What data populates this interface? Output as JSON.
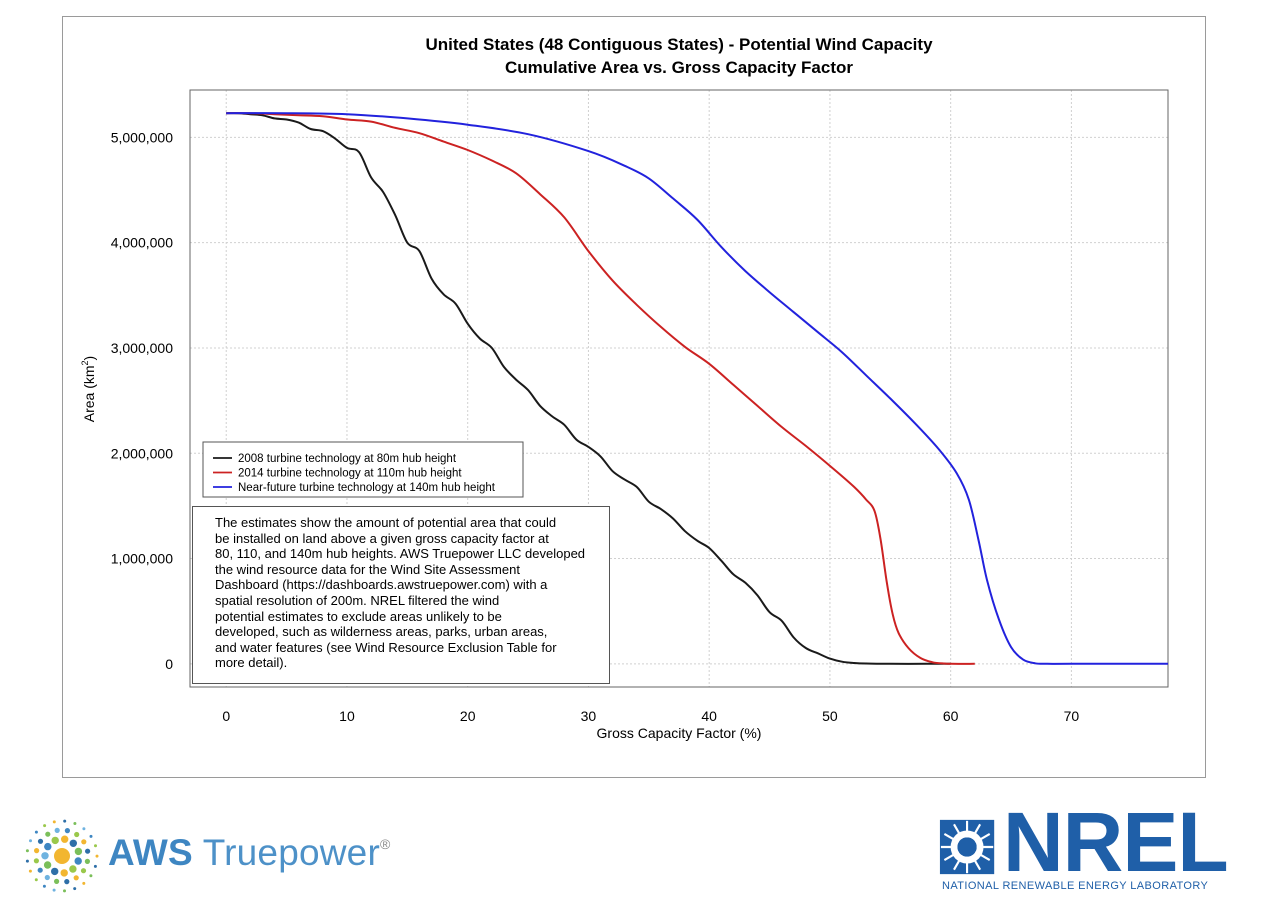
{
  "chart_data": {
    "type": "line",
    "title": "United States (48 Contiguous States) - Potential Wind Capacity",
    "subtitle": "Cumulative Area vs. Gross Capacity Factor",
    "xlabel": "Gross Capacity Factor (%)",
    "ylabel_main": "Area (km",
    "ylabel_sup": "2",
    "ylabel_close": ")",
    "xlim": [
      -3,
      78
    ],
    "ylim": [
      -220000,
      5450000
    ],
    "xticks": [
      0,
      10,
      20,
      30,
      40,
      50,
      60,
      70
    ],
    "xtick_labels": [
      "0",
      "10",
      "20",
      "30",
      "40",
      "50",
      "60",
      "70"
    ],
    "yticks": [
      0,
      1000000,
      2000000,
      3000000,
      4000000,
      5000000
    ],
    "ytick_labels": [
      "0",
      "1,000,000",
      "2,000,000",
      "3,000,000",
      "4,000,000",
      "5,000,000"
    ],
    "grid": true,
    "legend_position": "lower-left",
    "series": [
      {
        "name": "2008 turbine technology at 80m hub height",
        "color": "#1a1a1a",
        "x": [
          0,
          1,
          2,
          3,
          4,
          5,
          6,
          7,
          8,
          9,
          10,
          11,
          12,
          13,
          14,
          15,
          16,
          17,
          18,
          19,
          20,
          21,
          22,
          23,
          24,
          25,
          26,
          27,
          28,
          29,
          30,
          31,
          32,
          33,
          34,
          35,
          36,
          37,
          38,
          39,
          40,
          41,
          42,
          43,
          44,
          45,
          46,
          47,
          48,
          49,
          50,
          51,
          52,
          53,
          55,
          58,
          60
        ],
        "y": [
          5230000,
          5230000,
          5220000,
          5210000,
          5180000,
          5170000,
          5140000,
          5080000,
          5060000,
          4990000,
          4900000,
          4860000,
          4620000,
          4480000,
          4260000,
          4000000,
          3920000,
          3660000,
          3510000,
          3420000,
          3230000,
          3090000,
          3000000,
          2820000,
          2700000,
          2600000,
          2450000,
          2350000,
          2270000,
          2130000,
          2060000,
          1970000,
          1830000,
          1750000,
          1680000,
          1540000,
          1470000,
          1380000,
          1260000,
          1170000,
          1100000,
          980000,
          850000,
          770000,
          650000,
          490000,
          410000,
          250000,
          150000,
          100000,
          50000,
          20000,
          8000,
          3000,
          0,
          0,
          0
        ]
      },
      {
        "name": "2014 turbine technology at 110m hub height",
        "color": "#cc2222",
        "x": [
          0,
          2,
          4,
          6,
          8,
          10,
          12,
          14,
          16,
          18,
          20,
          22,
          24,
          26,
          28,
          30,
          32,
          34,
          36,
          38,
          40,
          42,
          44,
          46,
          48,
          50,
          52,
          53,
          53.7,
          54.2,
          54.7,
          55.2,
          55.7,
          56.5,
          57.5,
          58.5,
          59.5,
          60,
          62
        ],
        "y": [
          5230000,
          5230000,
          5220000,
          5210000,
          5200000,
          5170000,
          5150000,
          5090000,
          5040000,
          4960000,
          4880000,
          4780000,
          4660000,
          4460000,
          4240000,
          3920000,
          3640000,
          3410000,
          3200000,
          3010000,
          2850000,
          2650000,
          2450000,
          2250000,
          2070000,
          1880000,
          1680000,
          1560000,
          1450000,
          1180000,
          780000,
          470000,
          290000,
          150000,
          55000,
          15000,
          3000,
          0,
          0
        ]
      },
      {
        "name": "Near-future turbine technology at 140m hub height",
        "color": "#2222dd",
        "x": [
          0,
          5,
          10,
          15,
          20,
          25,
          30,
          33,
          35,
          37,
          39,
          41,
          43,
          45,
          47,
          49,
          51,
          53,
          55,
          57,
          59,
          60.5,
          61.5,
          62.3,
          63,
          64,
          65,
          66,
          67,
          68,
          70,
          78
        ],
        "y": [
          5230000,
          5230000,
          5220000,
          5180000,
          5120000,
          5030000,
          4870000,
          4730000,
          4610000,
          4420000,
          4220000,
          3960000,
          3730000,
          3530000,
          3340000,
          3150000,
          2960000,
          2740000,
          2520000,
          2290000,
          2040000,
          1810000,
          1560000,
          1180000,
          800000,
          420000,
          160000,
          40000,
          5000,
          0,
          0,
          0
        ]
      }
    ]
  },
  "note": {
    "lines": [
      "The estimates show the amount of potential area that could",
      "be installed on land above a given gross capacity factor at",
      "80, 110, and 140m hub heights. AWS Truepower LLC developed",
      "the wind resource data for the Wind Site Assessment",
      "Dashboard (https://dashboards.awstruepower.com) with a",
      "spatial resolution of 200m. NREL filtered the wind",
      "potential estimates to exclude areas unlikely to be",
      "developed, such as wilderness areas, parks, urban areas,",
      "and water features (see Wind Resource Exclusion Table for",
      "more detail)."
    ]
  },
  "logos": {
    "aws_bold": "AWS",
    "aws_rest": " Truepower",
    "aws_mark": "®",
    "nrel_word": "NREL",
    "nrel_sub": "NATIONAL RENEWABLE ENERGY LABORATORY",
    "nrel_color": "#1f5fa8",
    "aws_color": "#3e86c2"
  }
}
